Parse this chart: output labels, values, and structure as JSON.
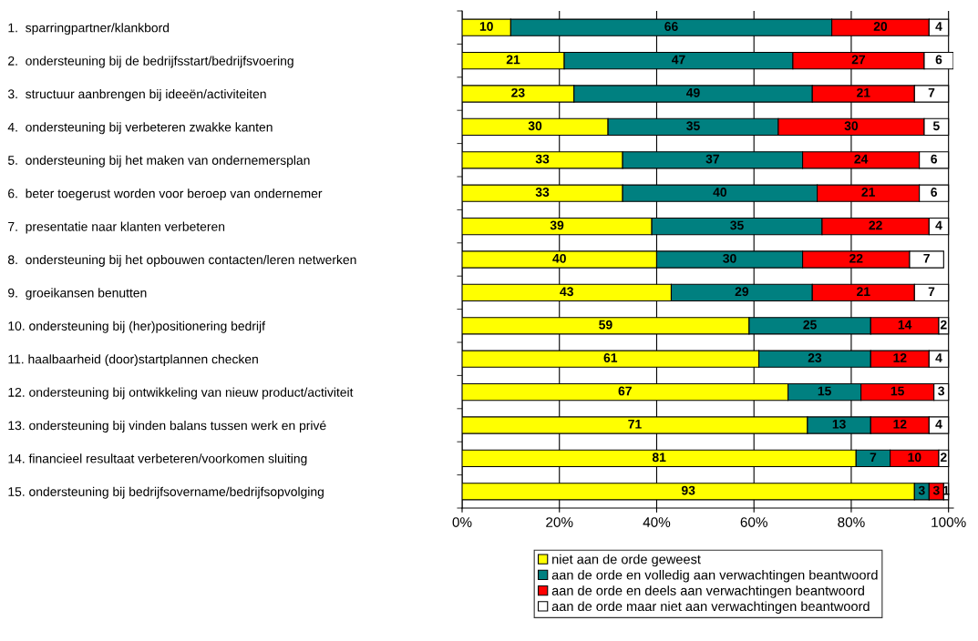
{
  "chart_data": {
    "type": "bar",
    "orientation": "horizontal",
    "stacked": true,
    "data_labels": true,
    "grid": "x",
    "legend": "bottom",
    "categories": [
      "1.  sparringpartner/klankbord",
      "2.  ondersteuning bij de bedrijfsstart/bedrijfsvoering",
      "3.  structuur aanbrengen bij ideeën/activiteiten",
      "4.  ondersteuning bij verbeteren zwakke kanten",
      "5.  ondersteuning bij het maken van ondernemersplan",
      "6.  beter toegerust worden voor beroep van ondernemer",
      "7.  presentatie naar klanten verbeteren",
      "8.  ondersteuning bij het opbouwen contacten/leren netwerken",
      "9.  groeikansen benutten",
      "10. ondersteuning bij (her)positionering bedrijf",
      "11. haalbaarheid (door)startplannen checken",
      "12. ondersteuning bij ontwikkeling van nieuw product/activiteit",
      "13. ondersteuning bij vinden balans tussen werk en privé",
      "14. financieel resultaat verbeteren/voorkomen sluiting",
      "15. ondersteuning bij bedrijfsovername/bedrijfsopvolging"
    ],
    "series": [
      {
        "name": "niet aan de orde geweest",
        "color": "#ffff00",
        "values": [
          10,
          21,
          23,
          30,
          33,
          33,
          39,
          40,
          43,
          59,
          61,
          67,
          71,
          81,
          93
        ]
      },
      {
        "name": "aan de orde en volledig aan verwachtingen beantwoord",
        "color": "#008080",
        "values": [
          66,
          47,
          49,
          35,
          37,
          40,
          35,
          30,
          29,
          25,
          23,
          15,
          13,
          7,
          3
        ]
      },
      {
        "name": "aan de orde en deels aan verwachtingen beantwoord",
        "color": "#ff0000",
        "values": [
          20,
          27,
          21,
          30,
          24,
          21,
          22,
          22,
          21,
          14,
          12,
          15,
          12,
          10,
          3
        ]
      },
      {
        "name": "aan de orde maar niet aan verwachtingen beantwoord",
        "color": "#ffffff",
        "values": [
          4,
          6,
          7,
          5,
          6,
          6,
          4,
          7,
          7,
          2,
          4,
          3,
          4,
          2,
          1
        ]
      }
    ],
    "xlim": [
      0,
      101
    ],
    "xticks": [
      {
        "value": 0,
        "label": "0%"
      },
      {
        "value": 20,
        "label": "20%"
      },
      {
        "value": 40,
        "label": "40%"
      },
      {
        "value": 60,
        "label": "60%"
      },
      {
        "value": 80,
        "label": "80%"
      },
      {
        "value": 100,
        "label": "100%"
      }
    ]
  }
}
